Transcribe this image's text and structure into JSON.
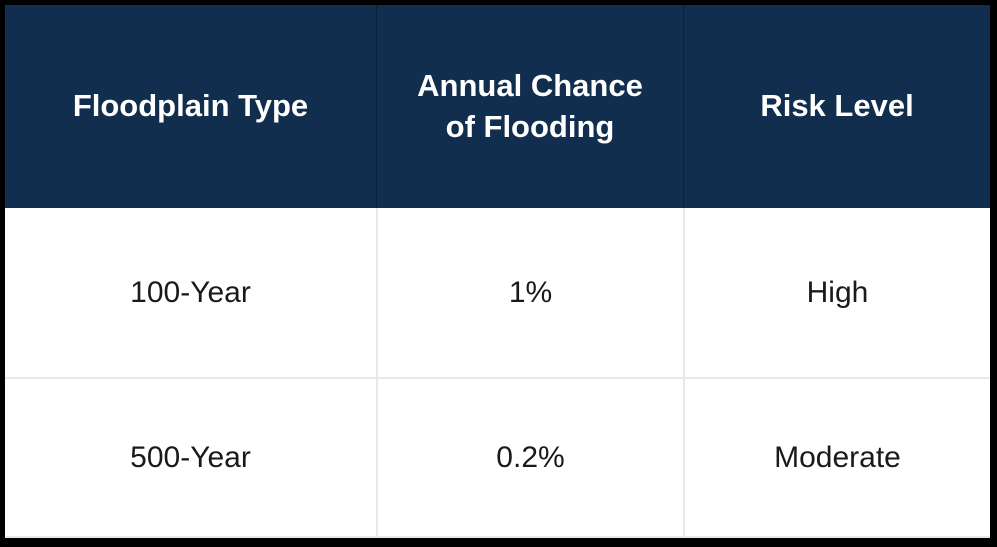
{
  "chart_data": {
    "type": "table",
    "columns": [
      "Floodplain Type",
      "Annual Chance of Flooding",
      "Risk Level"
    ],
    "rows": [
      [
        "100-Year",
        "1%",
        "High"
      ],
      [
        "500-Year",
        "0.2%",
        "Moderate"
      ]
    ]
  },
  "colors": {
    "header_bg": "#112e4e",
    "header_text": "#ffffff",
    "body_bg": "#ffffff",
    "body_text": "#1a1a1a",
    "grid_line": "#e8e8e8",
    "header_divider": "#0b2340",
    "outer_border": "#000000"
  }
}
